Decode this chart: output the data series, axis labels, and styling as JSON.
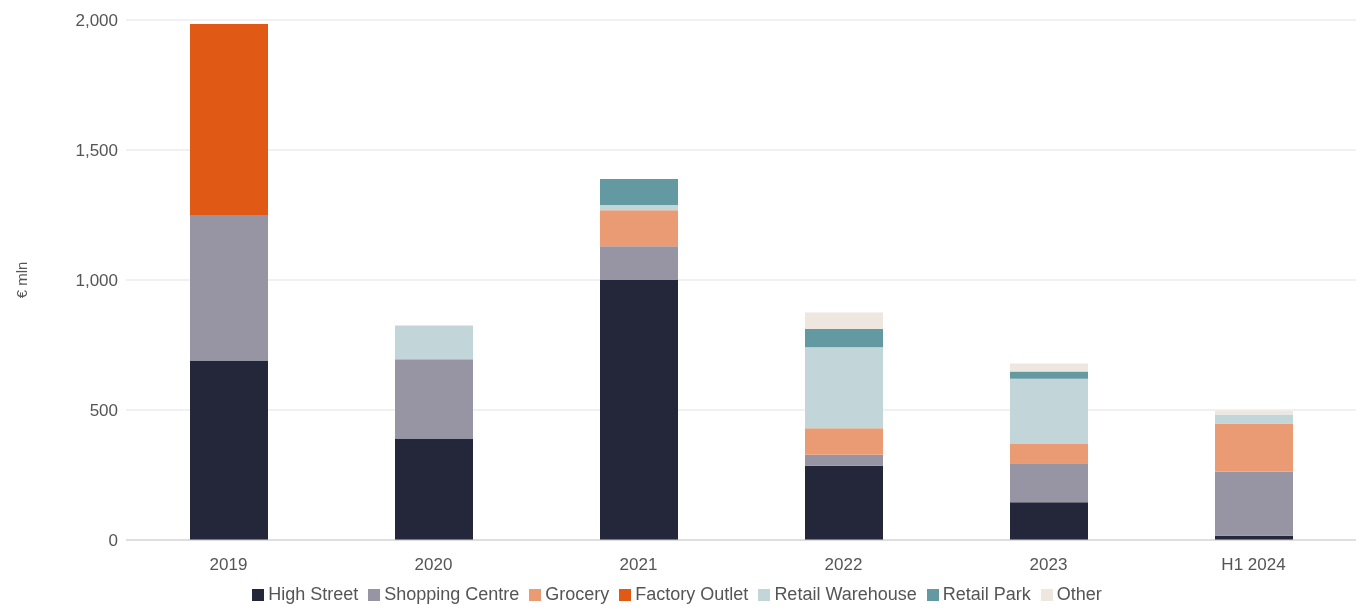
{
  "chart_data": {
    "type": "bar",
    "stacked": true,
    "ylabel": "€ mln",
    "categories": [
      "2019",
      "2020",
      "2021",
      "2022",
      "2023",
      "H1 2024"
    ],
    "series": [
      {
        "name": "High Street",
        "color": "#24273a",
        "values": [
          690,
          390,
          1000,
          286,
          145,
          16
        ]
      },
      {
        "name": "Shopping Centre",
        "color": "#9795a3",
        "values": [
          560,
          305,
          130,
          42,
          150,
          247
        ]
      },
      {
        "name": "Grocery",
        "color": "#eb9b73",
        "values": [
          null,
          null,
          138,
          102,
          74,
          185
        ]
      },
      {
        "name": "Factory Outlet",
        "color": "#e05a16",
        "values": [
          735,
          null,
          null,
          null,
          null,
          null
        ]
      },
      {
        "name": "Retail Warehouse",
        "color": "#c2d6da",
        "values": [
          null,
          130,
          20,
          311,
          251,
          35
        ]
      },
      {
        "name": "Retail Park",
        "color": "#6399a1",
        "values": [
          null,
          null,
          100,
          71,
          28,
          null
        ]
      },
      {
        "name": "Other",
        "color": "#ede7e0",
        "values": [
          null,
          null,
          null,
          63,
          31,
          14
        ]
      }
    ],
    "ylim": [
      0,
      2000
    ],
    "yticks": [
      0,
      {
        "value": 500,
        "label": "500"
      },
      {
        "value": 1000,
        "label": "1,000"
      },
      {
        "value": 1500,
        "label": "1,500"
      },
      {
        "value": 2000,
        "label": "2,000"
      }
    ],
    "grid": "y",
    "legend": "bottom"
  }
}
